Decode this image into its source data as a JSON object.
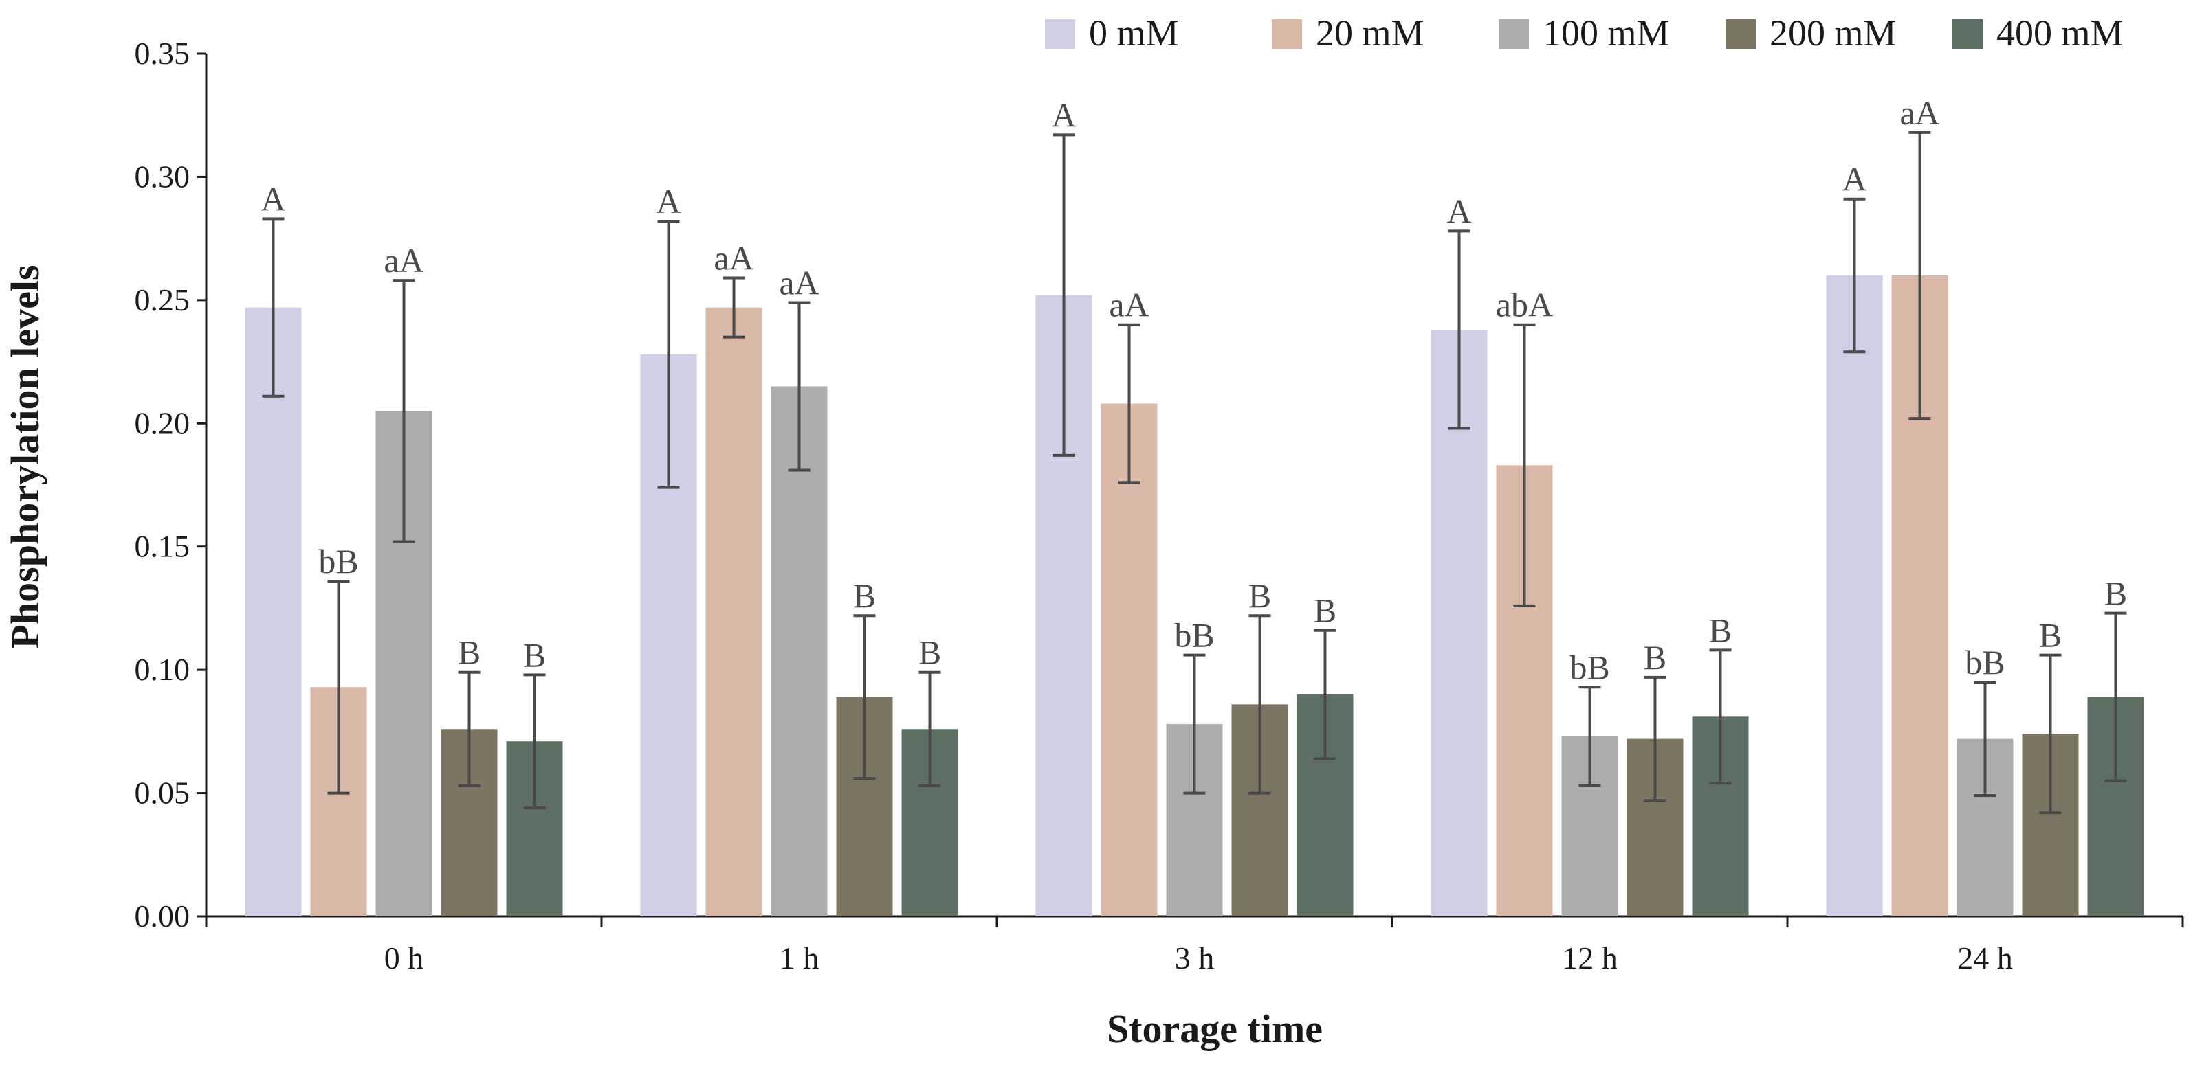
{
  "chart_data": {
    "type": "bar",
    "title": "",
    "xlabel": "Storage time",
    "ylabel": "Phosphorylation levels",
    "ylim": [
      0,
      0.35
    ],
    "yticks": [
      "0.00",
      "0.05",
      "0.10",
      "0.15",
      "0.20",
      "0.25",
      "0.30",
      "0.35"
    ],
    "categories": [
      "0 h",
      "1 h",
      "3 h",
      "12 h",
      "24 h"
    ],
    "legend_position": "top-right",
    "grid": false,
    "series": [
      {
        "name": "0 mM",
        "color": "#cfcfe6",
        "values": [
          0.247,
          0.228,
          0.252,
          0.238,
          0.26
        ],
        "errors": [
          0.036,
          0.054,
          0.065,
          0.04,
          0.031
        ],
        "labels": [
          "A",
          "A",
          "A",
          "A",
          "A"
        ]
      },
      {
        "name": "20 mM",
        "color": "#d9b8a8",
        "values": [
          0.093,
          0.247,
          0.208,
          0.183,
          0.26
        ],
        "errors": [
          0.043,
          0.012,
          0.032,
          0.057,
          0.058
        ],
        "labels": [
          "bB",
          "aA",
          "aA",
          "abA",
          "aA"
        ]
      },
      {
        "name": "100 mM",
        "color": "#adadad",
        "values": [
          0.205,
          0.215,
          0.078,
          0.073,
          0.072
        ],
        "errors": [
          0.053,
          0.034,
          0.028,
          0.02,
          0.023
        ],
        "labels": [
          "aA",
          "aA",
          "bB",
          "bB",
          "bB"
        ]
      },
      {
        "name": "200 mM",
        "color": "#7d7563",
        "values": [
          0.076,
          0.089,
          0.086,
          0.072,
          0.074
        ],
        "errors": [
          0.023,
          0.033,
          0.036,
          0.025,
          0.032
        ],
        "labels": [
          "B",
          "B",
          "B",
          "B",
          "B"
        ]
      },
      {
        "name": "400 mM",
        "color": "#5d6e63",
        "values": [
          0.071,
          0.076,
          0.09,
          0.081,
          0.089
        ],
        "errors": [
          0.027,
          0.023,
          0.026,
          0.027,
          0.034
        ],
        "labels": [
          "B",
          "B",
          "B",
          "B",
          "B"
        ]
      }
    ]
  }
}
